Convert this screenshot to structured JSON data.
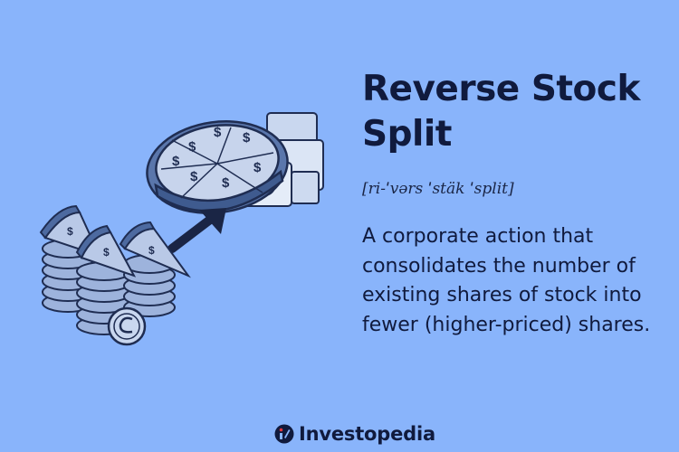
{
  "title": "Reverse Stock Split",
  "pronunciation": "[ri-ˈvərs ˈstäk ˈsplit]",
  "definition": "A corporate action that consolidates the number of existing shares of stock into fewer (higher-priced) shares.",
  "brand": {
    "name": "Investopedia",
    "logo_icon": "investopedia-logo-icon"
  },
  "colors": {
    "background": "#89b4fb",
    "text": "#101a3d"
  },
  "illustration": {
    "icons": [
      "coin-stack-icon",
      "pizza-slice-icon",
      "arrow-icon",
      "whole-pizza-icon",
      "cash-stack-icon",
      "coin-icon"
    ]
  }
}
